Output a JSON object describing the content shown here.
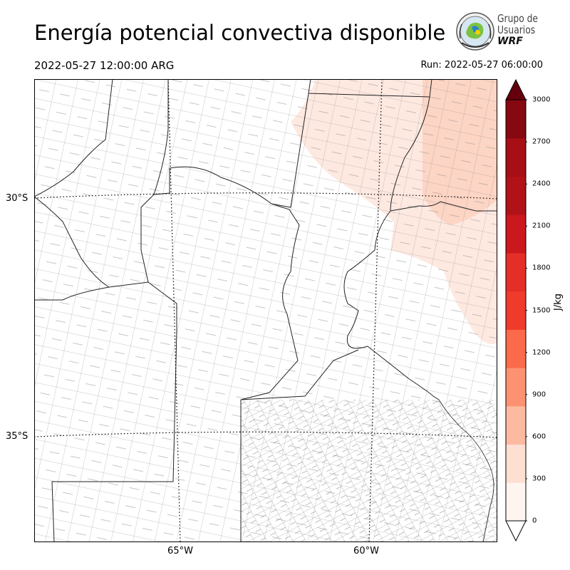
{
  "title": "Energía potencial convectiva disponible",
  "valid_time": "2022-05-27 12:00:00 ARG",
  "run_time": "Run: 2022-05-27 06:00:00",
  "logo": {
    "line1": "Grupo de",
    "line2": "Usuarios",
    "line3": "WRF"
  },
  "map": {
    "lat_labels": [
      "30°S",
      "35°S"
    ],
    "lon_labels": [
      "65°W",
      "60°W"
    ],
    "shaded_field": "CAPE",
    "field_colors": {
      "0-300": "#fee9e1",
      "300-600": "#fdd5c5"
    }
  },
  "colorbar": {
    "unit": "J/kg",
    "ticks": [
      "0",
      "300",
      "600",
      "900",
      "1200",
      "1500",
      "1800",
      "2100",
      "2400",
      "2700",
      "3000"
    ],
    "colors": [
      "#fff5f0",
      "#fee0d2",
      "#fcbba1",
      "#fc9272",
      "#fb6a4a",
      "#ef3b2c",
      "#e32f27",
      "#cb181d",
      "#b11218",
      "#a50f15",
      "#860811"
    ],
    "extend_below_color": "#ffffff",
    "extend_above_color": "#67000d"
  }
}
